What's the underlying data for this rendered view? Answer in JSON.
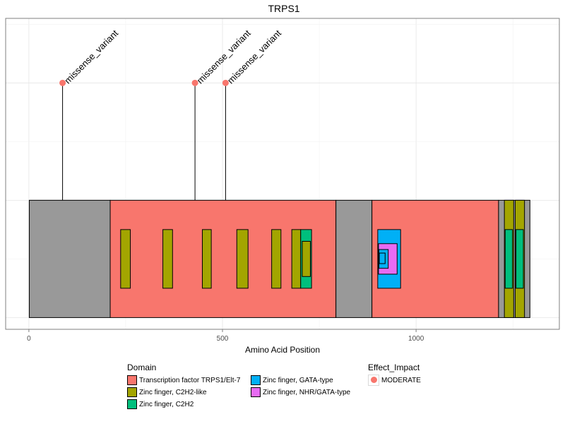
{
  "chart_data": {
    "type": "lollipop-domain",
    "title": "TRPS1",
    "xlabel": "Amino Acid Position",
    "xlim": [
      -60,
      1370
    ],
    "ylim": [
      -0.1,
      2.55
    ],
    "x_ticks": [
      0,
      500,
      1000
    ],
    "grid": true,
    "protein_length": 1294,
    "segments": [
      {
        "start": 1,
        "end": 210,
        "kind": "backbone"
      },
      {
        "start": 210,
        "end": 793,
        "kind": "domain",
        "domain": "Transcription factor TRPS1/Elt-7"
      },
      {
        "start": 793,
        "end": 886,
        "kind": "backbone"
      },
      {
        "start": 886,
        "end": 1213,
        "kind": "domain",
        "domain": "Transcription factor TRPS1/Elt-7"
      },
      {
        "start": 1213,
        "end": 1294,
        "kind": "backbone"
      }
    ],
    "domains": [
      {
        "name": "Zinc finger, C2H2-like",
        "start": 237,
        "end": 262,
        "y0": 0.25,
        "y1": 0.75
      },
      {
        "name": "Zinc finger, C2H2-like",
        "start": 346,
        "end": 371,
        "y0": 0.25,
        "y1": 0.75
      },
      {
        "name": "Zinc finger, C2H2-like",
        "start": 448,
        "end": 471,
        "y0": 0.25,
        "y1": 0.75
      },
      {
        "name": "Zinc finger, C2H2-like",
        "start": 537,
        "end": 566,
        "y0": 0.25,
        "y1": 0.75
      },
      {
        "name": "Zinc finger, C2H2-like",
        "start": 627,
        "end": 651,
        "y0": 0.25,
        "y1": 0.75
      },
      {
        "name": "Zinc finger, C2H2-like",
        "start": 679,
        "end": 702,
        "y0": 0.25,
        "y1": 0.75
      },
      {
        "name": "Zinc finger, C2H2",
        "start": 702,
        "end": 730,
        "y0": 0.25,
        "y1": 0.75
      },
      {
        "name": "Zinc finger, C2H2-like",
        "start": 706,
        "end": 727,
        "y0": 0.35,
        "y1": 0.65
      },
      {
        "name": "Zinc finger, GATA-type",
        "start": 901,
        "end": 960,
        "y0": 0.25,
        "y1": 0.75
      },
      {
        "name": "Zinc finger, NHR/GATA-type",
        "start": 903,
        "end": 951,
        "y0": 0.37,
        "y1": 0.63
      },
      {
        "name": "Zinc finger, GATA-type",
        "start": 904,
        "end": 928,
        "y0": 0.42,
        "y1": 0.58
      },
      {
        "name": "Zinc finger, GATA-type",
        "start": 905,
        "end": 920,
        "y0": 0.46,
        "y1": 0.55
      },
      {
        "name": "Zinc finger, C2H2-like",
        "start": 1228,
        "end": 1252,
        "y0": 0,
        "y1": 1
      },
      {
        "name": "Zinc finger, C2H2",
        "start": 1230,
        "end": 1249,
        "y0": 0.25,
        "y1": 0.75
      },
      {
        "name": "Zinc finger, C2H2-like",
        "start": 1256,
        "end": 1280,
        "y0": 0,
        "y1": 1
      },
      {
        "name": "Zinc finger, C2H2",
        "start": 1258,
        "end": 1277,
        "y0": 0.25,
        "y1": 0.75
      }
    ],
    "variants": [
      {
        "position": 87,
        "y": 2.0,
        "label": "missense_variant",
        "effect": "MODERATE"
      },
      {
        "position": 429,
        "y": 2.0,
        "label": "missense_variant",
        "effect": "MODERATE"
      },
      {
        "position": 508,
        "y": 2.0,
        "label": "missense_variant",
        "effect": "MODERATE"
      }
    ],
    "colors": {
      "backbone": "#999999",
      "Transcription factor TRPS1/Elt-7": "#F8766D",
      "Zinc finger, C2H2-like": "#A3A500",
      "Zinc finger, C2H2": "#00BF7D",
      "Zinc finger, GATA-type": "#00B0F6",
      "Zinc finger, NHR/GATA-type": "#E76BF3",
      "MODERATE": "#F8766D"
    }
  },
  "legend": {
    "domain_title": "Domain",
    "domain_items": [
      {
        "label": "Transcription factor TRPS1/Elt-7",
        "color": "#F8766D"
      },
      {
        "label": "Zinc finger, C2H2-like",
        "color": "#A3A500"
      },
      {
        "label": "Zinc finger, C2H2",
        "color": "#00BF7D"
      },
      {
        "label": "Zinc finger, GATA-type",
        "color": "#00B0F6"
      },
      {
        "label": "Zinc finger, NHR/GATA-type",
        "color": "#E76BF3"
      }
    ],
    "effect_title": "Effect_Impact",
    "effect_items": [
      {
        "label": "MODERATE",
        "color": "#F8766D"
      }
    ]
  }
}
